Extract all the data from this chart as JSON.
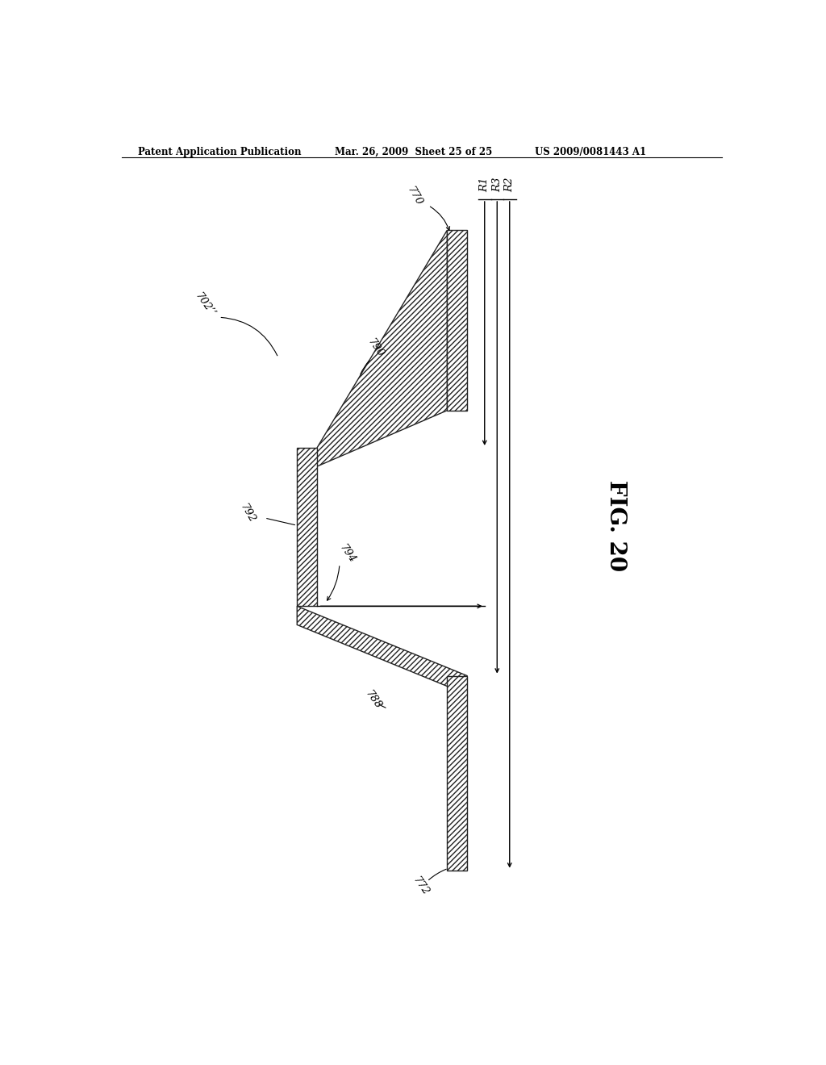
{
  "bg_color": "#ffffff",
  "header_left": "Patent Application Publication",
  "header_mid": "Mar. 26, 2009  Sheet 25 of 25",
  "header_right": "US 2009/0081443 A1",
  "fig_label": "FIG. 20",
  "labels": {
    "702pp": "702’’",
    "770": "770",
    "790": "790",
    "792": "792",
    "794": "794",
    "788": "788",
    "772": "772",
    "R1": "R1",
    "R2": "R2",
    "R3": "R3"
  },
  "line_color": "#000000"
}
